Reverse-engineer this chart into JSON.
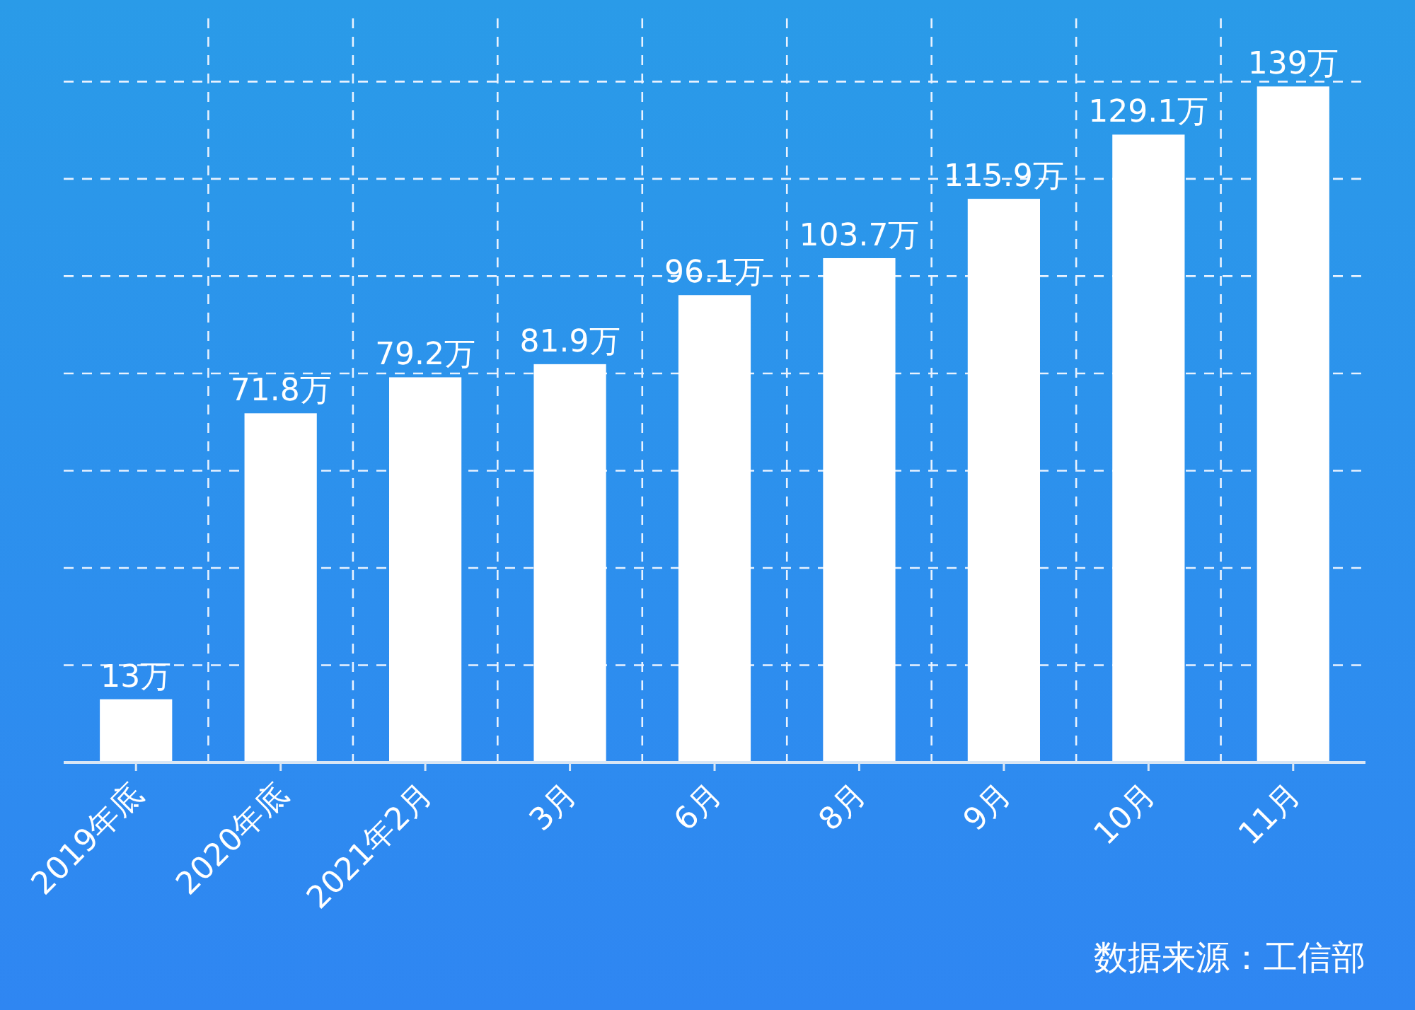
{
  "chart_data": {
    "type": "bar",
    "categories": [
      "2019年底",
      "2020年底",
      "2021年2月",
      "3月",
      "6月",
      "8月",
      "9月",
      "10月",
      "11月"
    ],
    "values": [
      13,
      71.8,
      79.2,
      81.9,
      96.1,
      103.7,
      115.9,
      129.1,
      139
    ],
    "value_labels": [
      "13万",
      "71.8万",
      "79.2万",
      "81.9万",
      "96.1万",
      "103.7万",
      "115.9万",
      "129.1万",
      "139万"
    ],
    "color": "#ffffff",
    "ylim": [
      0,
      153
    ],
    "yticks": [
      {
        "value": 0,
        "label": null
      },
      {
        "value": 20,
        "label": null
      },
      {
        "value": 40,
        "label": null
      },
      {
        "value": 60,
        "label": null
      },
      {
        "value": 80,
        "label": null
      },
      {
        "value": 100,
        "label": null
      },
      {
        "value": 120,
        "label": null
      },
      {
        "value": 140,
        "label": null
      }
    ],
    "tick_labels": "x",
    "grid": true,
    "annotations": [
      "数据来源：工信部"
    ]
  }
}
